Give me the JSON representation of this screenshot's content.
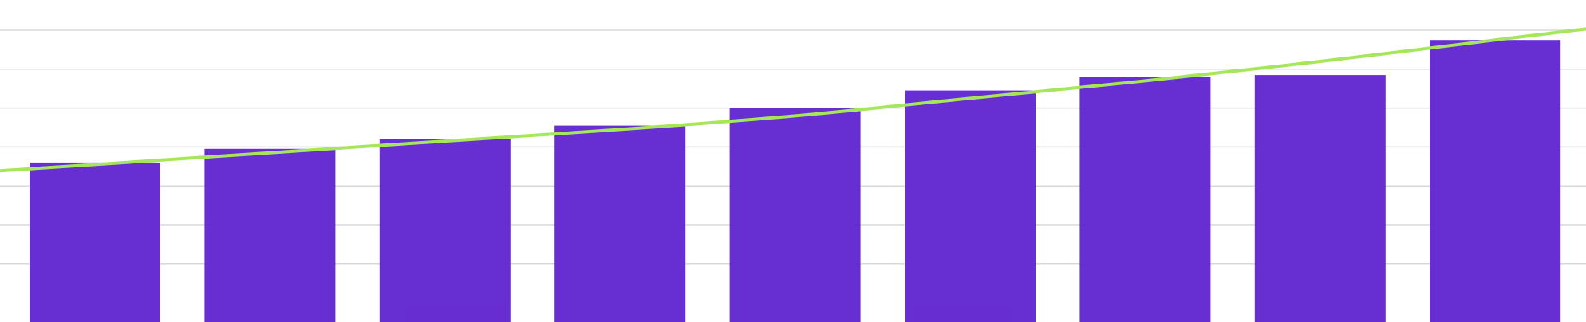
{
  "chart_data": {
    "type": "bar",
    "categories": [
      "",
      "",
      "",
      "",
      "",
      "",
      "",
      "",
      ""
    ],
    "series": [
      {
        "type": "bar",
        "values": [
          4.1,
          4.45,
          4.7,
          5.05,
          5.5,
          5.95,
          6.3,
          6.35,
          7.25
        ]
      },
      {
        "type": "line",
        "values": [
          4.05,
          4.35,
          4.65,
          4.95,
          5.3,
          5.75,
          6.2,
          6.7,
          7.25
        ]
      }
    ],
    "ylim": [
      0,
      8.25
    ],
    "grid": true,
    "colors": {
      "bar": "#6227CF",
      "trend": "#A6E65A",
      "grid": "#D9D9D9",
      "background": "#FFFFFF"
    }
  }
}
